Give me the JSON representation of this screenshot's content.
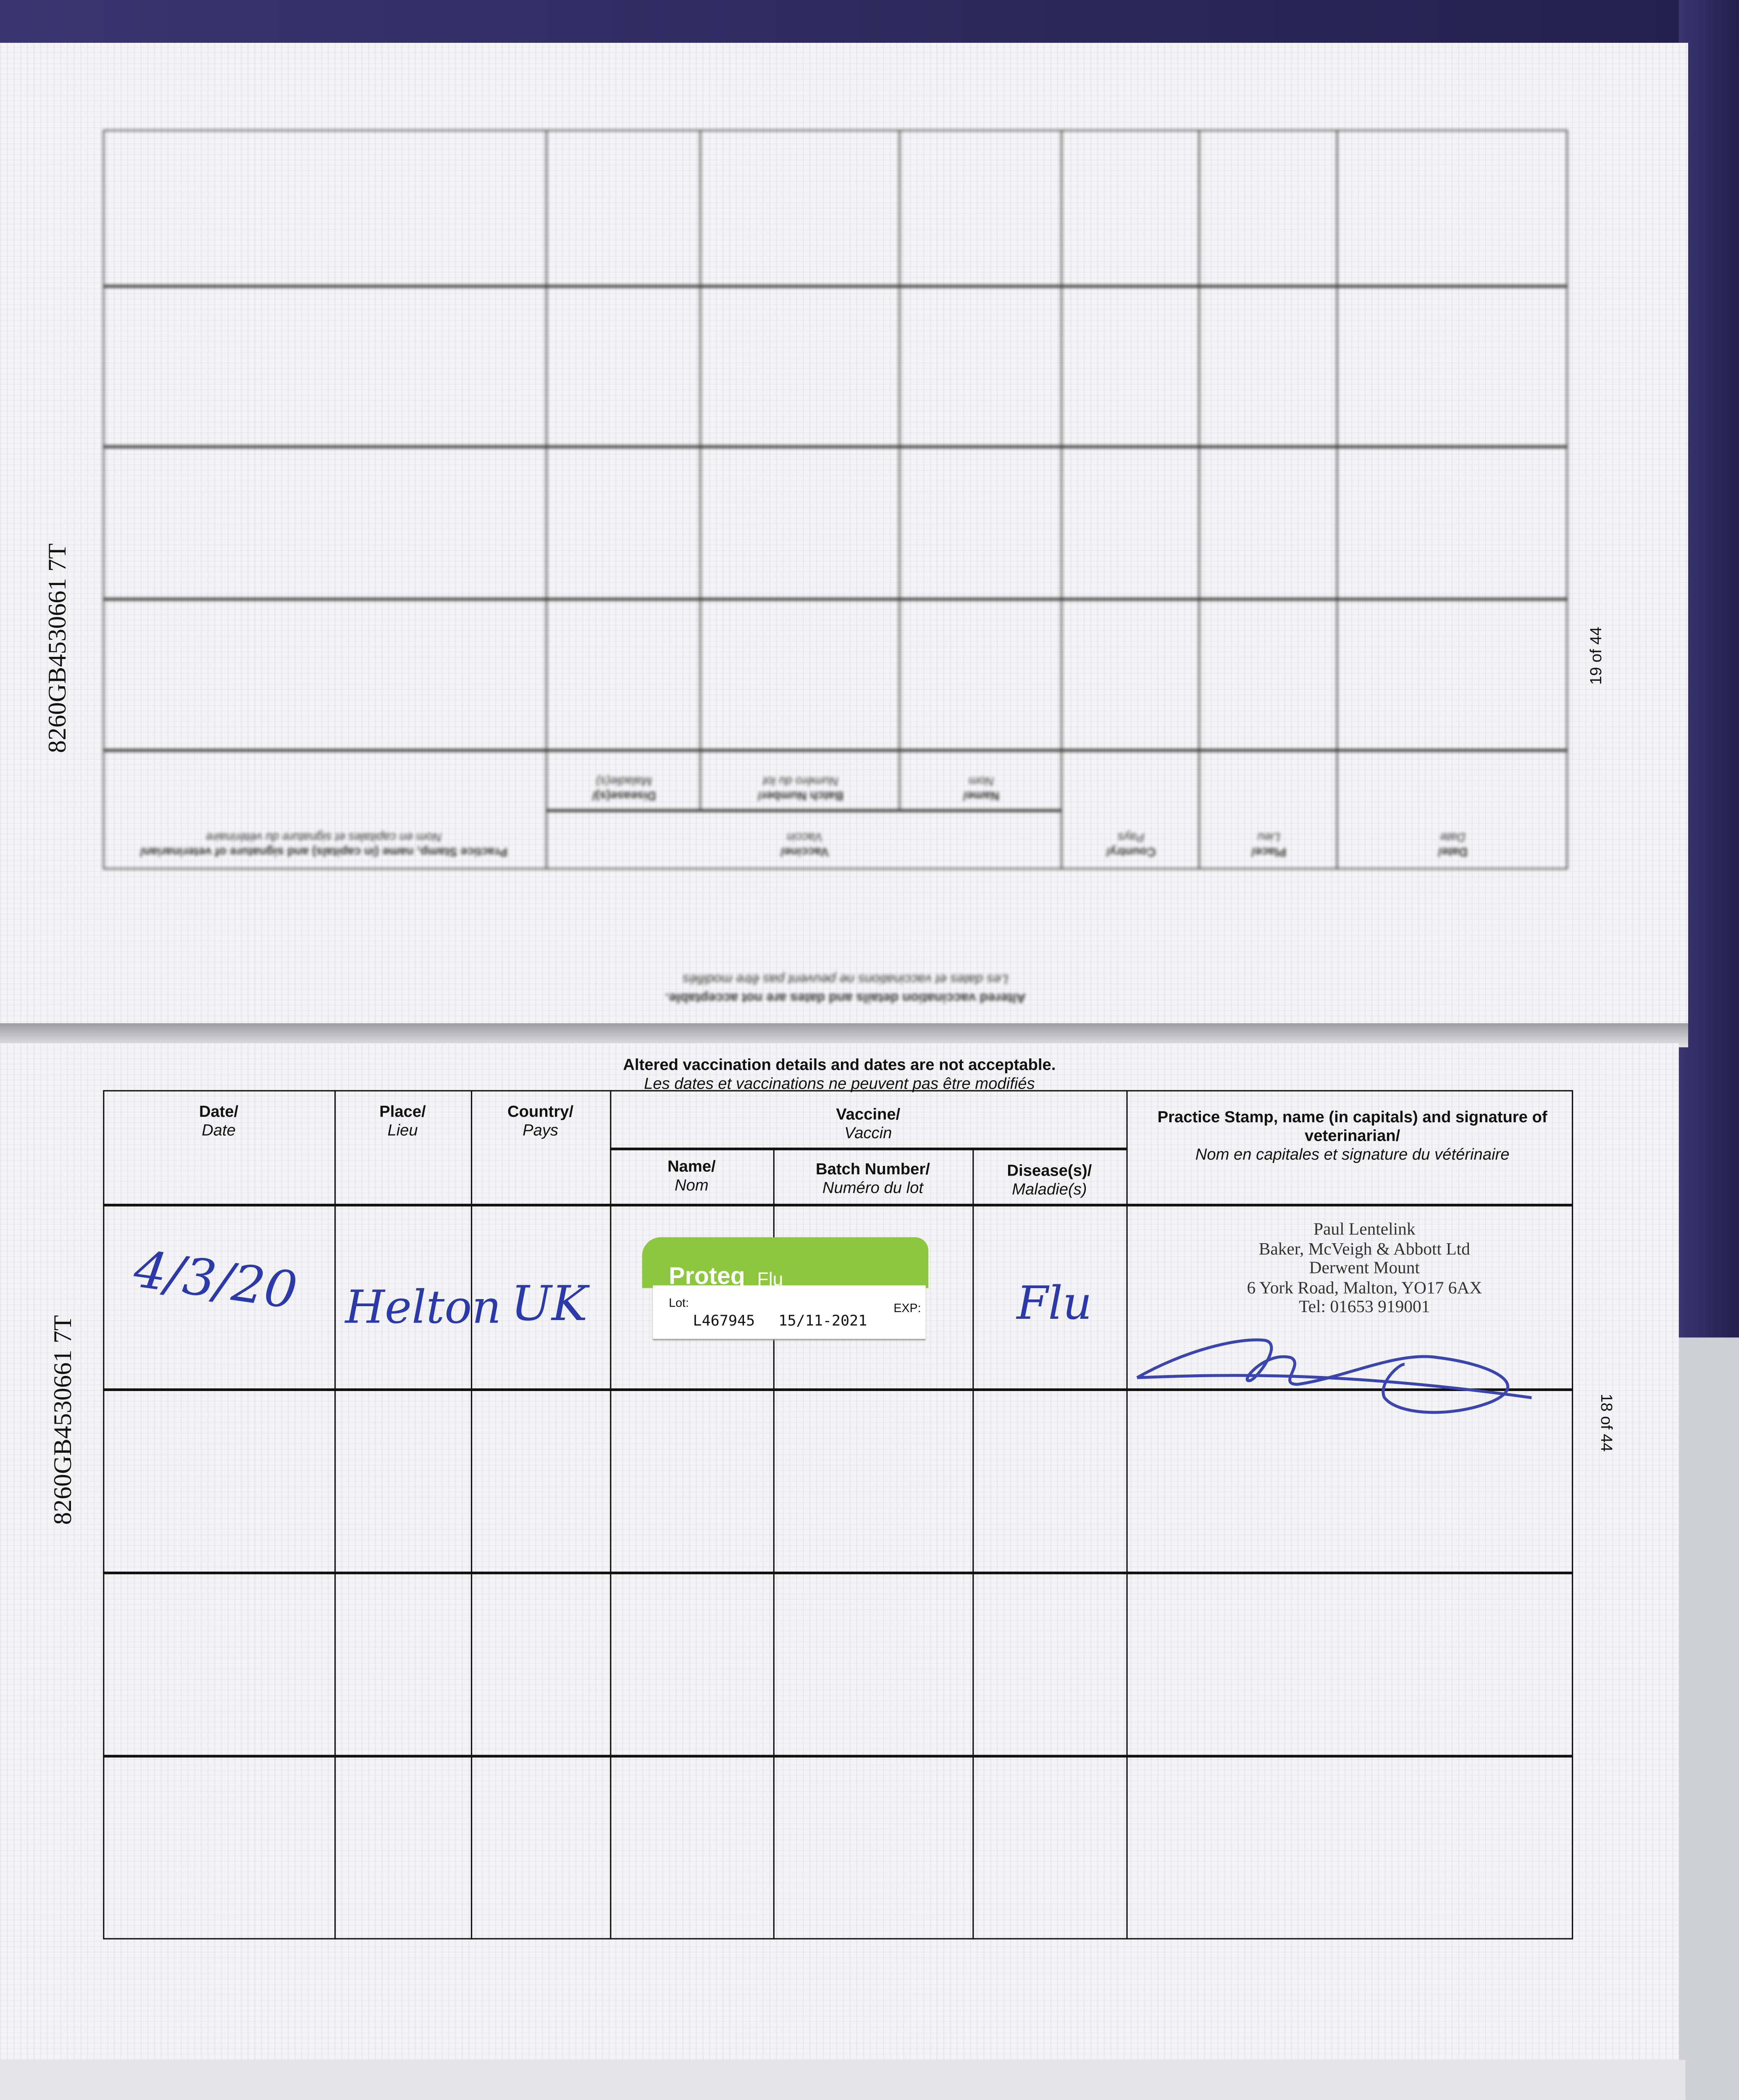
{
  "document": {
    "serial_number": "8260GB4530661 7T",
    "top_page": {
      "page_number": "19 of 44"
    },
    "bottom_page": {
      "page_number": "18 of 44"
    },
    "notice": {
      "en": "Altered vaccination details and dates are not acceptable.",
      "fr": "Les dates et vaccinations ne peuvent pas être modifiés"
    },
    "columns": {
      "date": {
        "en": "Date/",
        "fr": "Date"
      },
      "place": {
        "en": "Place/",
        "fr": "Lieu"
      },
      "country": {
        "en": "Country/",
        "fr": "Pays"
      },
      "vaccine": {
        "en": "Vaccine/",
        "fr": "Vaccin"
      },
      "name": {
        "en": "Name/",
        "fr": "Nom"
      },
      "batch": {
        "en": "Batch Number/",
        "fr": "Numéro du lot"
      },
      "disease": {
        "en": "Disease(s)/",
        "fr": "Maladie(s)"
      },
      "stamp": {
        "en": "Practice Stamp, name (in capitals) and signature of veterinarian/",
        "fr": "Nom en capitales et signature du vétérinaire"
      }
    },
    "entries": [
      {
        "date": "4/3/20",
        "place": "Helton",
        "country": "UK",
        "vaccine_sticker": {
          "brand": "Proteq",
          "product": "Flu",
          "lot_label": "Lot:",
          "exp_label": "EXP:",
          "lot": "L467945",
          "expiry": "15/11-2021"
        },
        "disease": "Flu",
        "stamp": {
          "name": "Paul Lentelink",
          "practice": "Baker, McVeigh & Abbott Ltd",
          "address1": "Derwent Mount",
          "address2": "6 York Road, Malton, YO17 6AX",
          "tel": "Tel: 01653 919001"
        }
      }
    ],
    "colors": {
      "ink": "#2b3aa8",
      "sticker_green": "#8dc63f",
      "cover": "#2a255a"
    }
  }
}
